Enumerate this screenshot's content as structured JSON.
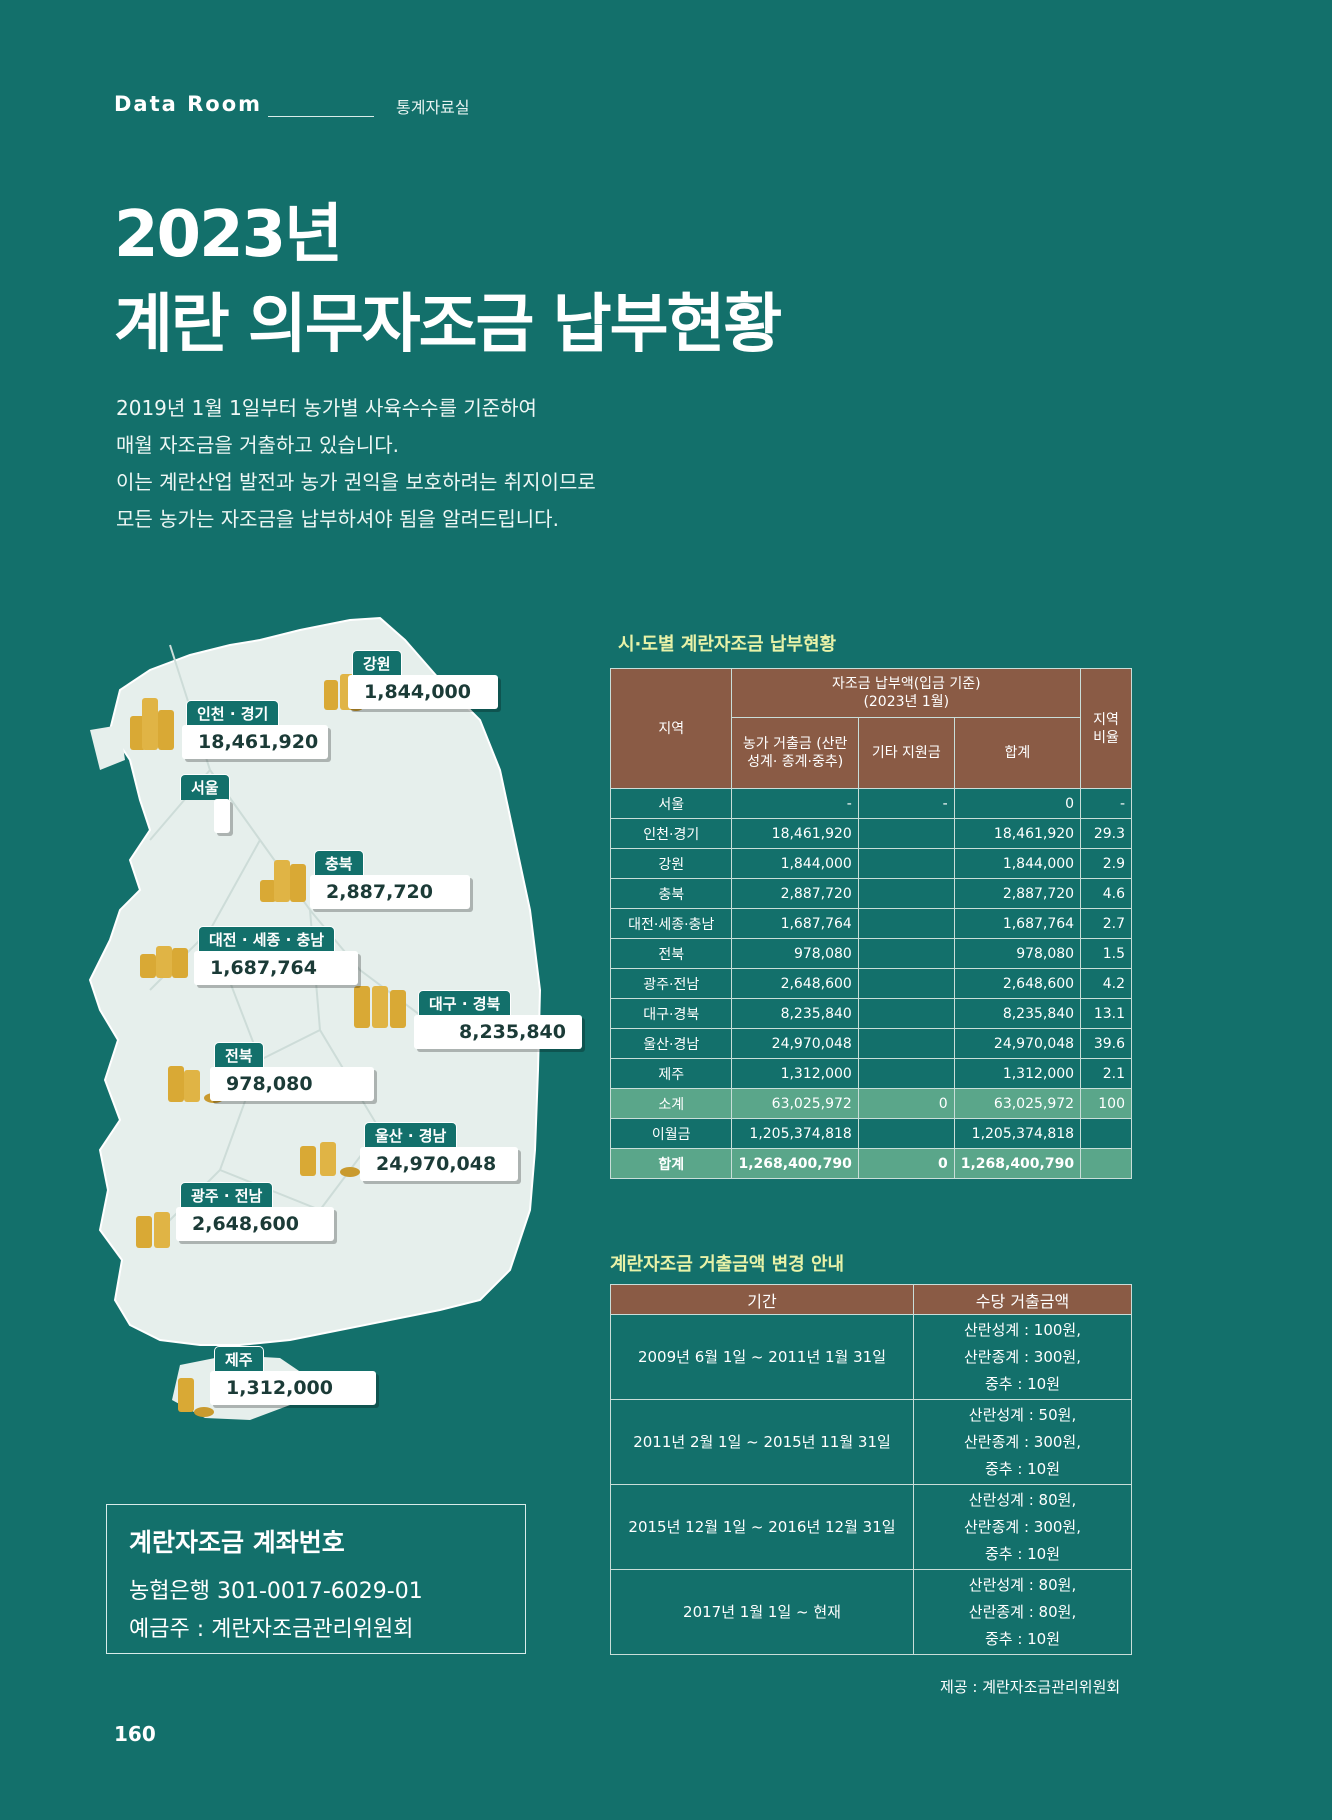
{
  "header": {
    "label": "Data Room",
    "sub": "통계자료실"
  },
  "title": {
    "line1": "2023년",
    "line2": "계란 의무자조금 납부현황"
  },
  "description": [
    "2019년 1월 1일부터 농가별 사육수수를 기준하여",
    "매월 자조금을 거출하고 있습니다.",
    "이는 계란산업 발전과 농가 권익을 보호하려는 취지이므로",
    "모든 농가는 자조금을 납부하셔야 됨을 알려드립니다."
  ],
  "map_badges": [
    {
      "region": "강원",
      "value": "1,844,000"
    },
    {
      "region": "인천 · 경기",
      "value": "18,461,920"
    },
    {
      "region": "서울",
      "value": ""
    },
    {
      "region": "충북",
      "value": "2,887,720"
    },
    {
      "region": "대전 · 세종 · 충남",
      "value": "1,687,764"
    },
    {
      "region": "대구 · 경북",
      "value": "8,235,840"
    },
    {
      "region": "전북",
      "value": "978,080"
    },
    {
      "region": "울산 · 경남",
      "value": "24,970,048"
    },
    {
      "region": "광주 · 전남",
      "value": "2,648,600"
    },
    {
      "region": "제주",
      "value": "1,312,000"
    }
  ],
  "stats_table": {
    "title": "시·도별 계란자조금 납부현황",
    "head_region": "지역",
    "head_group": "자조금 납부액(입금 기준)",
    "head_group_sub": "(2023년 1월)",
    "head_farm": "농가 거출금 (산란성계· 종계·중추)",
    "head_other": "기타 지원금",
    "head_sum": "합계",
    "head_ratio": "지역 비율",
    "rows": [
      {
        "region": "서울",
        "farm": "-",
        "other": "-",
        "sum": "0",
        "ratio": "-"
      },
      {
        "region": "인천·경기",
        "farm": "18,461,920",
        "other": "",
        "sum": "18,461,920",
        "ratio": "29.3"
      },
      {
        "region": "강원",
        "farm": "1,844,000",
        "other": "",
        "sum": "1,844,000",
        "ratio": "2.9"
      },
      {
        "region": "충북",
        "farm": "2,887,720",
        "other": "",
        "sum": "2,887,720",
        "ratio": "4.6"
      },
      {
        "region": "대전·세종·충남",
        "farm": "1,687,764",
        "other": "",
        "sum": "1,687,764",
        "ratio": "2.7"
      },
      {
        "region": "전북",
        "farm": "978,080",
        "other": "",
        "sum": "978,080",
        "ratio": "1.5"
      },
      {
        "region": "광주·전남",
        "farm": "2,648,600",
        "other": "",
        "sum": "2,648,600",
        "ratio": "4.2"
      },
      {
        "region": "대구·경북",
        "farm": "8,235,840",
        "other": "",
        "sum": "8,235,840",
        "ratio": "13.1"
      },
      {
        "region": "울산·경남",
        "farm": "24,970,048",
        "other": "",
        "sum": "24,970,048",
        "ratio": "39.6"
      },
      {
        "region": "제주",
        "farm": "1,312,000",
        "other": "",
        "sum": "1,312,000",
        "ratio": "2.1"
      }
    ],
    "subtotal": {
      "region": "소계",
      "farm": "63,025,972",
      "other": "0",
      "sum": "63,025,972",
      "ratio": "100"
    },
    "carryover": {
      "region": "이월금",
      "farm": "1,205,374,818",
      "other": "",
      "sum": "1,205,374,818",
      "ratio": ""
    },
    "total": {
      "region": "합계",
      "farm": "1,268,400,790",
      "other": "0",
      "sum": "1,268,400,790",
      "ratio": ""
    }
  },
  "rates_table": {
    "title": "계란자조금 거출금액 변경 안내",
    "head_period": "기간",
    "head_amount": "수당 거출금액",
    "rows": [
      {
        "period": "2009년 6월 1일 ~ 2011년 1월 31일",
        "amounts": [
          "산란성계 : 100원,",
          "산란종계 : 300원,",
          "중추 : 10원"
        ]
      },
      {
        "period": "2011년 2월 1일 ~ 2015년 11월 31일",
        "amounts": [
          "산란성계 : 50원,",
          "산란종계 : 300원,",
          "중추 : 10원"
        ]
      },
      {
        "period": "2015년 12월 1일 ~ 2016년 12월 31일",
        "amounts": [
          "산란성계 : 80원,",
          "산란종계 : 300원,",
          "중추 : 10원"
        ]
      },
      {
        "period": "2017년 1월 1일 ~ 현재",
        "amounts": [
          "산란성계 : 80원,",
          "산란종계 : 80원,",
          "중추 : 10원"
        ]
      }
    ]
  },
  "account": {
    "title": "계란자조금 계좌번호",
    "bank_line": "농협은행  301-0017-6029-01",
    "holder_line": "예금주 : 계란자조금관리위원회"
  },
  "source": "제공 : 계란자조금관리위원회",
  "page_number": "160",
  "colors": {
    "background": "#13706b",
    "table_header": "#8a5b45",
    "highlight_row": "#5aa68a",
    "section_title": "#e8f2a8",
    "map_land": "#e6efec",
    "coin": "#d9a935"
  },
  "icons": [
    "coin-stack-icon"
  ]
}
